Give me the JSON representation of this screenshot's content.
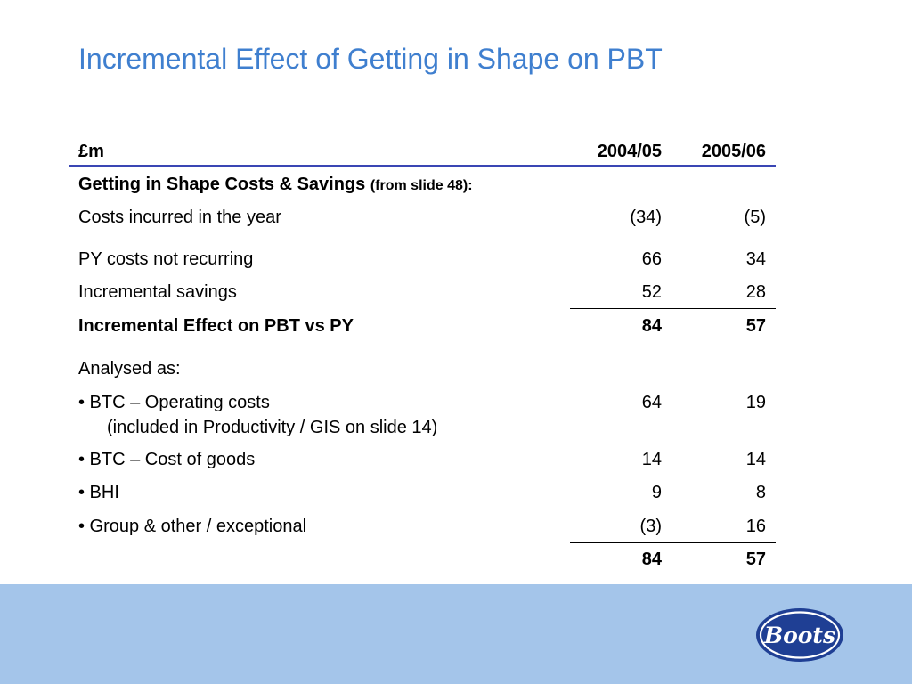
{
  "slide": {
    "title": "Incremental Effect of Getting in Shape on PBT"
  },
  "table": {
    "header": {
      "label": "£m",
      "col1": "2004/05",
      "col2": "2005/06"
    },
    "section_heading": {
      "label": "Getting in Shape Costs & Savings",
      "suffix": "(from slide 48):"
    },
    "rows": [
      {
        "label": "Costs incurred in the year",
        "col1": "(34)",
        "col2": "(5)"
      },
      {
        "label": "PY costs not recurring",
        "col1": "66",
        "col2": "34"
      },
      {
        "label": "Incremental savings",
        "col1": "52",
        "col2": "28"
      },
      {
        "label": "Incremental Effect on PBT vs PY",
        "col1": "84",
        "col2": "57"
      }
    ],
    "analysed_label": "Analysed as:",
    "analysis_rows": [
      {
        "label": "• BTC – Operating costs",
        "sub": "(included in Productivity / GIS on slide 14)",
        "col1": "64",
        "col2": "19"
      },
      {
        "label": "• BTC – Cost of goods",
        "col1": "14",
        "col2": "14"
      },
      {
        "label": "• BHI",
        "col1": "9",
        "col2": "8"
      },
      {
        "label": "• Group & other / exceptional",
        "col1": "(3)",
        "col2": "16"
      }
    ],
    "total": {
      "col1": "84",
      "col2": "57"
    }
  },
  "logo": {
    "text": "Boots",
    "colors": {
      "oval": "#1f3f94",
      "ring": "#ffffff",
      "text": "#ffffff"
    }
  },
  "colors": {
    "title": "#3f7fcf",
    "header_rule": "#3a46b4",
    "footer_band": "#a4c5ea"
  }
}
